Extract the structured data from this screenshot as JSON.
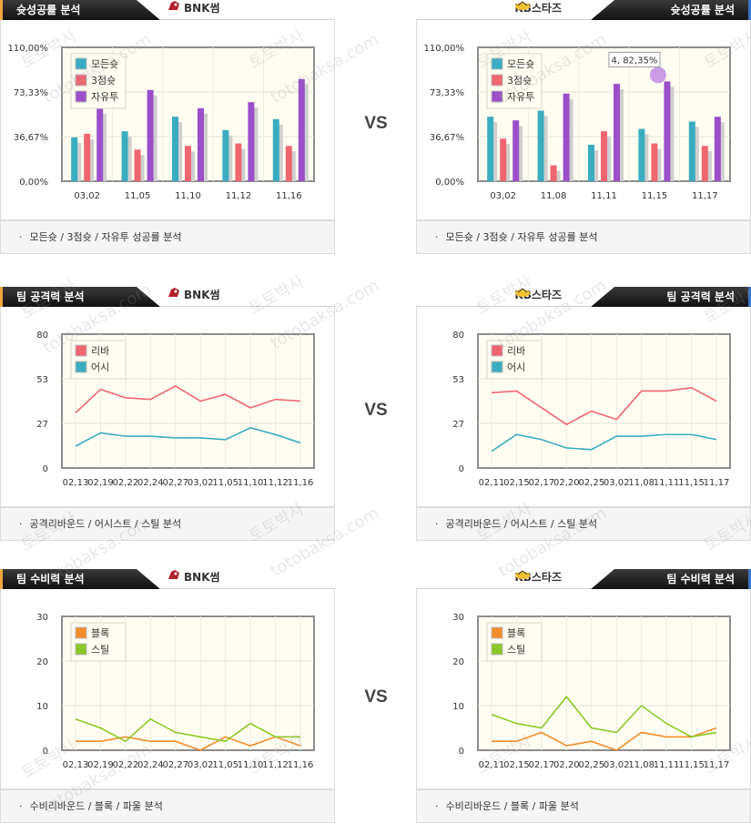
{
  "vs_label": "VS",
  "teams": {
    "home": "BNK썸",
    "away": "KB스타즈"
  },
  "watermark": {
    "ko": "토토박사",
    "en": "totobaksa.com"
  },
  "panels": [
    {
      "title": "슛성공률 분석",
      "footer": "모든슛 / 3점슛 / 자유투 성공률 분석",
      "chart_data": [
        {
          "type": "bar",
          "team": "BNK썸",
          "categories": [
            "03,02",
            "11,05",
            "11,10",
            "11,12",
            "11,16"
          ],
          "yticks": [
            "0,00%",
            "36,67%",
            "73,33%",
            "110,00%"
          ],
          "ylim": [
            0,
            110
          ],
          "series": [
            {
              "name": "모든슛",
              "color": "#3aacc0",
              "values": [
                36,
                41,
                53,
                42,
                51
              ]
            },
            {
              "name": "3점슛",
              "color": "#ef6670",
              "values": [
                39,
                26,
                29,
                31,
                29
              ]
            },
            {
              "name": "자유투",
              "color": "#9b4fc9",
              "values": [
                60,
                75,
                60,
                65,
                84
              ]
            }
          ]
        },
        {
          "type": "bar",
          "team": "KB스타즈",
          "categories": [
            "03,02",
            "11,08",
            "11,11",
            "11,15",
            "11,17"
          ],
          "yticks": [
            "0,00%",
            "36,67%",
            "73,33%",
            "110,00%"
          ],
          "ylim": [
            0,
            110
          ],
          "tooltip": "4, 82,35%",
          "series": [
            {
              "name": "모든슛",
              "color": "#3aacc0",
              "values": [
                53,
                58,
                30,
                43,
                49
              ]
            },
            {
              "name": "3점슛",
              "color": "#ef6670",
              "values": [
                35,
                13,
                41,
                31,
                29
              ]
            },
            {
              "name": "자유투",
              "color": "#9b4fc9",
              "values": [
                50,
                72,
                80,
                82,
                53
              ]
            }
          ]
        }
      ]
    },
    {
      "title": "팀 공격력 분석",
      "footer": "공격리바운드 / 어시스트 / 스틸 분석",
      "chart_data": [
        {
          "type": "line",
          "team": "BNK썸",
          "categories": [
            "02,13",
            "02,19",
            "02,22",
            "02,24",
            "02,27",
            "03,02",
            "11,05",
            "11,10",
            "11,12",
            "11,16"
          ],
          "yticks": [
            "0",
            "27",
            "53",
            "80"
          ],
          "ylim": [
            0,
            80
          ],
          "series": [
            {
              "name": "리바",
              "color": "#ef6670",
              "values": [
                33,
                47,
                42,
                41,
                49,
                40,
                44,
                36,
                41,
                40
              ]
            },
            {
              "name": "어시",
              "color": "#3aacc0",
              "values": [
                13,
                21,
                19,
                19,
                18,
                18,
                17,
                24,
                20,
                15
              ]
            }
          ]
        },
        {
          "type": "line",
          "team": "KB스타즈",
          "categories": [
            "02,11",
            "02,15",
            "02,17",
            "02,20",
            "02,25",
            "03,02",
            "11,08",
            "11,11",
            "11,15",
            "11,17"
          ],
          "yticks": [
            "0",
            "27",
            "53",
            "80"
          ],
          "ylim": [
            0,
            80
          ],
          "series": [
            {
              "name": "리바",
              "color": "#ef6670",
              "values": [
                45,
                46,
                36,
                26,
                34,
                29,
                46,
                46,
                48,
                40
              ]
            },
            {
              "name": "어시",
              "color": "#3aacc0",
              "values": [
                10,
                20,
                17,
                12,
                11,
                19,
                19,
                20,
                20,
                17
              ]
            }
          ]
        }
      ]
    },
    {
      "title": "팀 수비력 분석",
      "footer": "수비리바운드 / 블록 / 파울 분석",
      "chart_data": [
        {
          "type": "line",
          "team": "BNK썸",
          "categories": [
            "02,13",
            "02,19",
            "02,22",
            "02,24",
            "02,27",
            "03,02",
            "11,05",
            "11,10",
            "11,12",
            "11,16"
          ],
          "yticks": [
            "0",
            "10",
            "20",
            "30"
          ],
          "ylim": [
            0,
            30
          ],
          "series": [
            {
              "name": "블록",
              "color": "#f48c2c",
              "values": [
                2,
                2,
                3,
                2,
                2,
                0,
                3,
                1,
                3,
                1
              ]
            },
            {
              "name": "스틸",
              "color": "#8ac926",
              "values": [
                7,
                5,
                2,
                7,
                4,
                3,
                2,
                6,
                3,
                3
              ]
            }
          ]
        },
        {
          "type": "line",
          "team": "KB스타즈",
          "categories": [
            "02,11",
            "02,15",
            "02,17",
            "02,20",
            "02,25",
            "03,02",
            "11,08",
            "11,11",
            "11,15",
            "11,17"
          ],
          "yticks": [
            "0",
            "10",
            "20",
            "30"
          ],
          "ylim": [
            0,
            30
          ],
          "series": [
            {
              "name": "블록",
              "color": "#f48c2c",
              "values": [
                2,
                2,
                4,
                1,
                2,
                0,
                4,
                3,
                3,
                5
              ]
            },
            {
              "name": "스틸",
              "color": "#8ac926",
              "values": [
                8,
                6,
                5,
                12,
                5,
                4,
                10,
                6,
                3,
                4
              ]
            }
          ]
        }
      ]
    }
  ]
}
